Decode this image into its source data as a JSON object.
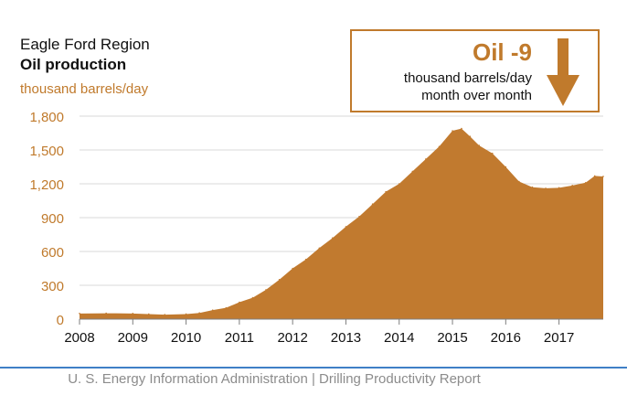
{
  "header": {
    "region": "Eagle Ford Region",
    "title": "Oil production",
    "unit": "thousand barrels/day"
  },
  "callout": {
    "headline": "Oil -9",
    "line1": "thousand barrels/day",
    "line2": "month over month",
    "icon": "down-arrow-icon"
  },
  "footer": {
    "text": "U. S. Energy Information Administration  |  Drilling Productivity Report"
  },
  "colors": {
    "area": "#c17a2f",
    "accent_text": "#c07a2c",
    "footer_rule": "#3f7fc6",
    "grid": "#d9d9d9"
  },
  "chart_data": {
    "type": "area",
    "title": "Oil production",
    "ylabel": "thousand barrels/day",
    "ylim": [
      0,
      1800
    ],
    "yticks": [
      0,
      300,
      600,
      900,
      1200,
      1500,
      1800
    ],
    "ytick_labels": [
      "0",
      "300",
      "600",
      "900",
      "1,200",
      "1,500",
      "1,800"
    ],
    "xlim": [
      2008,
      2017.83
    ],
    "xticks": [
      2008,
      2009,
      2010,
      2011,
      2012,
      2013,
      2014,
      2015,
      2016,
      2017
    ],
    "xtick_labels": [
      "2008",
      "2009",
      "2010",
      "2011",
      "2012",
      "2013",
      "2014",
      "2015",
      "2016",
      "2017"
    ],
    "grid": true,
    "series": [
      {
        "x": [
          2008.0,
          2008.5,
          2009.0,
          2009.3,
          2009.6,
          2010.0,
          2010.25,
          2010.5,
          2010.75,
          2011.0,
          2011.25,
          2011.5,
          2011.75,
          2012.0,
          2012.25,
          2012.5,
          2012.75,
          2013.0,
          2013.25,
          2013.5,
          2013.75,
          2014.0,
          2014.25,
          2014.5,
          2014.75,
          2015.0,
          2015.17,
          2015.33,
          2015.5,
          2015.75,
          2016.0,
          2016.25,
          2016.5,
          2016.75,
          2017.0,
          2017.25,
          2017.5,
          2017.67,
          2017.83
        ],
        "y": [
          50,
          52,
          50,
          45,
          40,
          45,
          55,
          80,
          100,
          150,
          190,
          260,
          350,
          450,
          530,
          630,
          720,
          820,
          910,
          1020,
          1130,
          1200,
          1310,
          1420,
          1530,
          1670,
          1690,
          1620,
          1540,
          1470,
          1350,
          1220,
          1170,
          1160,
          1165,
          1185,
          1210,
          1270,
          1265
        ]
      }
    ]
  }
}
